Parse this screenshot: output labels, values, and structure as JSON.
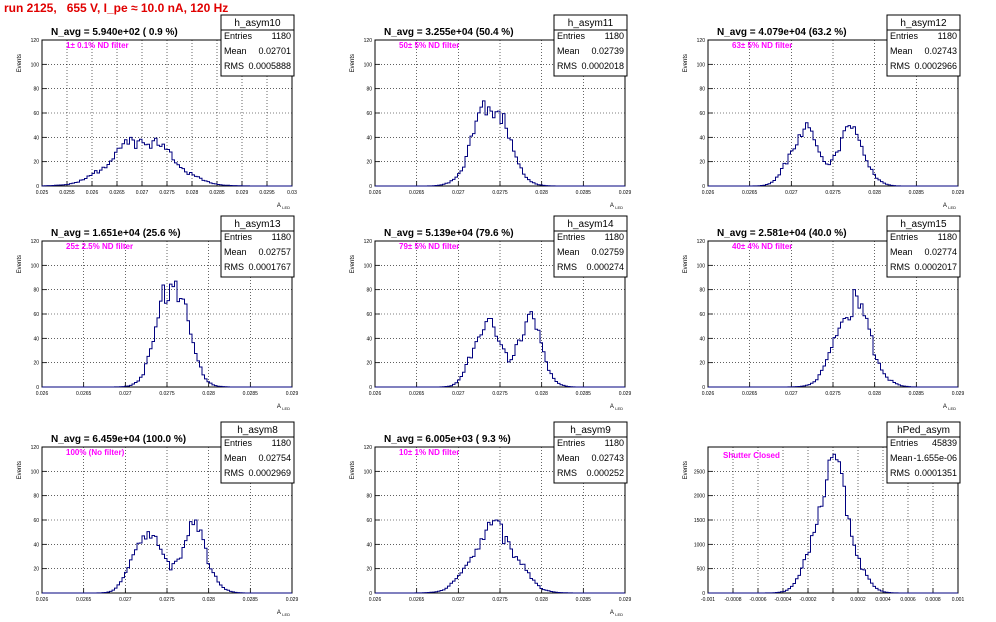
{
  "page": {
    "title": "run 2125,   655 V, I_pe ≈ 10.0 nA, 120 Hz"
  },
  "style": {
    "histogram_color": "#00007f",
    "title_color": "#e00000",
    "annotation_color": "#ff00ff",
    "grid_color": "#000000"
  },
  "stats_labels": {
    "entries": "Entries",
    "mean": "Mean",
    "rms": "RMS"
  },
  "chart_data": [
    {
      "type": "histogram",
      "name": "h_asym10",
      "nlabel": "N_avg = 5.940e+02 ( 0.9 %)",
      "annotation": "1± 0.1% ND filter",
      "ylabel": "Events",
      "xlabel": "A",
      "xlabel_sub": "LED",
      "xlim": [
        0.025,
        0.03
      ],
      "ylim": [
        0,
        120
      ],
      "xticks": [
        "0.025",
        "0.0255",
        "0.026",
        "0.0265",
        "0.027",
        "0.0275",
        "0.028",
        "0.0285",
        "0.029",
        "0.0295",
        "0.03"
      ],
      "yticks": [
        "0",
        "20",
        "40",
        "60",
        "80",
        "100",
        "120"
      ],
      "grid": true,
      "stats": {
        "entries": "1180",
        "mean": "0.02701",
        "rms": "0.0005888"
      },
      "mean": 0.02701,
      "rms": 0.0005888,
      "peak": 40
    },
    {
      "type": "histogram",
      "name": "h_asym11",
      "nlabel": "N_avg = 3.255e+04 (50.4 %)",
      "annotation": "50± 5% ND filter",
      "ylabel": "Events",
      "xlabel": "A",
      "xlabel_sub": "LED",
      "xlim": [
        0.026,
        0.029
      ],
      "ylim": [
        0,
        120
      ],
      "xticks": [
        "0.026",
        "0.0265",
        "0.027",
        "0.0275",
        "0.028",
        "0.0285",
        "0.029"
      ],
      "yticks": [
        "0",
        "20",
        "40",
        "60",
        "80",
        "100",
        "120"
      ],
      "grid": true,
      "stats": {
        "entries": "1180",
        "mean": "0.02739",
        "rms": "0.0002018"
      },
      "mean": 0.02739,
      "rms": 0.0002018,
      "peak": 70
    },
    {
      "type": "histogram",
      "name": "h_asym12",
      "nlabel": "N_avg = 4.079e+04 (63.2 %)",
      "annotation": "63± 5% ND filter",
      "ylabel": "Events",
      "xlabel": "A",
      "xlabel_sub": "LED",
      "xlim": [
        0.026,
        0.029
      ],
      "ylim": [
        0,
        120
      ],
      "xticks": [
        "0.026",
        "0.0265",
        "0.027",
        "0.0275",
        "0.028",
        "0.0285",
        "0.029"
      ],
      "yticks": [
        "0",
        "20",
        "40",
        "60",
        "80",
        "100",
        "120"
      ],
      "grid": true,
      "stats": {
        "entries": "1180",
        "mean": "0.02743",
        "rms": "0.0002966"
      },
      "mean": 0.02743,
      "rms": 0.0002966,
      "peak": 52,
      "bimodal": true
    },
    {
      "type": "histogram",
      "name": "h_asym13",
      "nlabel": "N_avg = 1.651e+04 (25.6 %)",
      "annotation": "25± 2.5% ND filter",
      "ylabel": "Events",
      "xlabel": "A",
      "xlabel_sub": "LED",
      "xlim": [
        0.026,
        0.029
      ],
      "ylim": [
        0,
        120
      ],
      "xticks": [
        "0.026",
        "0.0265",
        "0.027",
        "0.0275",
        "0.028",
        "0.0285",
        "0.029"
      ],
      "yticks": [
        "0",
        "20",
        "40",
        "60",
        "80",
        "100",
        "120"
      ],
      "grid": true,
      "stats": {
        "entries": "1180",
        "mean": "0.02757",
        "rms": "0.0001767"
      },
      "mean": 0.02757,
      "rms": 0.0001767,
      "peak": 87
    },
    {
      "type": "histogram",
      "name": "h_asym14",
      "nlabel": "N_avg = 5.139e+04 (79.6 %)",
      "annotation": "79± 5% ND filter",
      "ylabel": "Events",
      "xlabel": "A",
      "xlabel_sub": "LED",
      "xlim": [
        0.026,
        0.029
      ],
      "ylim": [
        0,
        120
      ],
      "xticks": [
        "0.026",
        "0.0265",
        "0.027",
        "0.0275",
        "0.028",
        "0.0285",
        "0.029"
      ],
      "yticks": [
        "0",
        "20",
        "40",
        "60",
        "80",
        "100",
        "120"
      ],
      "grid": true,
      "stats": {
        "entries": "1180",
        "mean": "0.02759",
        "rms": "0.000274"
      },
      "mean": 0.02759,
      "rms": 0.000274,
      "peak": 62,
      "bimodal": true
    },
    {
      "type": "histogram",
      "name": "h_asym15",
      "nlabel": "N_avg = 2.581e+04 (40.0 %)",
      "annotation": "40± 4% ND filter",
      "ylabel": "Events",
      "xlabel": "A",
      "xlabel_sub": "LED",
      "xlim": [
        0.026,
        0.029
      ],
      "ylim": [
        0,
        120
      ],
      "xticks": [
        "0.026",
        "0.0265",
        "0.027",
        "0.0275",
        "0.028",
        "0.0285",
        "0.029"
      ],
      "yticks": [
        "0",
        "20",
        "40",
        "60",
        "80",
        "100",
        "120"
      ],
      "grid": true,
      "stats": {
        "entries": "1180",
        "mean": "0.02774",
        "rms": "0.0002017"
      },
      "mean": 0.02774,
      "rms": 0.0002017,
      "peak": 80
    },
    {
      "type": "histogram",
      "name": "h_asym8",
      "nlabel": "N_avg = 6.459e+04 (100.0 %)",
      "annotation": "100% (No filter)",
      "ylabel": "Events",
      "xlabel": "A",
      "xlabel_sub": "LED",
      "xlim": [
        0.026,
        0.029
      ],
      "ylim": [
        0,
        120
      ],
      "xticks": [
        "0.026",
        "0.0265",
        "0.027",
        "0.0275",
        "0.028",
        "0.0285",
        "0.029"
      ],
      "yticks": [
        "0",
        "20",
        "40",
        "60",
        "80",
        "100",
        "120"
      ],
      "grid": true,
      "stats": {
        "entries": "1180",
        "mean": "0.02754",
        "rms": "0.0002969"
      },
      "mean": 0.02754,
      "rms": 0.0002969,
      "peak": 60,
      "bimodal": true
    },
    {
      "type": "histogram",
      "name": "h_asym9",
      "nlabel": "N_avg = 6.005e+03 ( 9.3 %)",
      "annotation": "10± 1% ND filter",
      "ylabel": "Events",
      "xlabel": "A",
      "xlabel_sub": "LED",
      "xlim": [
        0.026,
        0.029
      ],
      "ylim": [
        0,
        120
      ],
      "xticks": [
        "0.026",
        "0.0265",
        "0.027",
        "0.0275",
        "0.028",
        "0.0285",
        "0.029"
      ],
      "yticks": [
        "0",
        "20",
        "40",
        "60",
        "80",
        "100",
        "120"
      ],
      "grid": true,
      "stats": {
        "entries": "1180",
        "mean": "0.02743",
        "rms": "0.000252"
      },
      "mean": 0.02743,
      "rms": 0.000252,
      "peak": 60
    },
    {
      "type": "histogram",
      "name": "hPed_asym",
      "nlabel": "",
      "annotation": "Shutter Closed",
      "ylabel": "Events",
      "xlabel": "",
      "xlabel_sub": "",
      "xlim": [
        -0.001,
        0.001
      ],
      "ylim": [
        0,
        3000
      ],
      "xticks": [
        "-0.001",
        "-0.0008",
        "-0.0006",
        "-0.0004",
        "-0.0002",
        "0",
        "0.0002",
        "0.0004",
        "0.0006",
        "0.0008",
        "0.001"
      ],
      "yticks": [
        "0",
        "500",
        "1000",
        "1500",
        "2000",
        "2500"
      ],
      "grid": true,
      "stats": {
        "entries": "45839",
        "mean": "-1.655e-06",
        "rms": "0.0001351"
      },
      "mean": -1.655e-06,
      "rms": 0.0001351,
      "peak": 2850
    }
  ]
}
